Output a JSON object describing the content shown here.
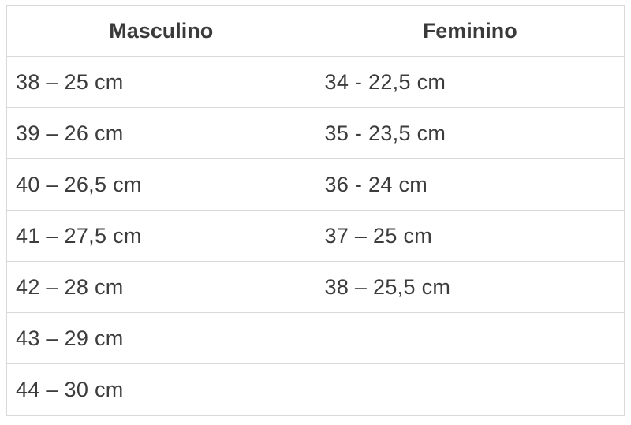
{
  "table": {
    "headers": [
      "Masculino",
      "Feminino"
    ],
    "rows": [
      [
        "38 – 25 cm",
        "34 - 22,5 cm"
      ],
      [
        "39 – 26 cm",
        "35 - 23,5 cm"
      ],
      [
        "40 – 26,5 cm",
        "36 - 24 cm"
      ],
      [
        "41 – 27,5 cm",
        "37 – 25 cm"
      ],
      [
        "42 – 28 cm",
        "38 – 25,5 cm"
      ],
      [
        "43 – 29 cm",
        ""
      ],
      [
        "44 – 30 cm",
        ""
      ]
    ]
  }
}
